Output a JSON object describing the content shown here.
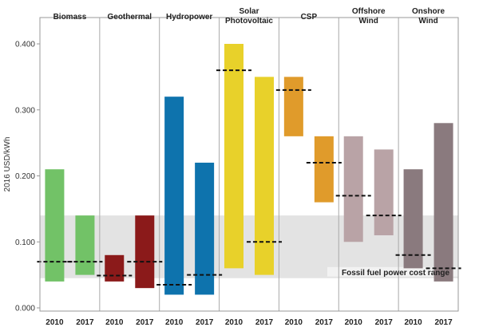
{
  "chart_data": {
    "type": "bar",
    "ylabel": "2016 USD/kWh",
    "ylim": [
      0,
      0.42
    ],
    "yticks": [
      "0.000",
      "0.100",
      "0.200",
      "0.300",
      "0.400"
    ],
    "ytick_values": [
      0,
      0.1,
      0.2,
      0.3,
      0.4
    ],
    "years": [
      "2010",
      "2017"
    ],
    "band": {
      "label": "Fossil fuel power cost range",
      "low": 0.045,
      "high": 0.14,
      "color": "#e3e3e3"
    },
    "technologies": [
      {
        "name_lines": [
          "Biomass"
        ],
        "color": "#72c267",
        "bars": [
          {
            "year": "2010",
            "low": 0.04,
            "high": 0.21,
            "avg": 0.07
          },
          {
            "year": "2017",
            "low": 0.05,
            "high": 0.14,
            "avg": 0.07
          }
        ]
      },
      {
        "name_lines": [
          "Geothermal"
        ],
        "color": "#8b1a1a",
        "bars": [
          {
            "year": "2010",
            "low": 0.04,
            "high": 0.08,
            "avg": 0.049
          },
          {
            "year": "2017",
            "low": 0.03,
            "high": 0.14,
            "avg": 0.07
          }
        ]
      },
      {
        "name_lines": [
          "Hydropower"
        ],
        "color": "#0e73ad",
        "bars": [
          {
            "year": "2010",
            "low": 0.02,
            "high": 0.32,
            "avg": 0.035
          },
          {
            "year": "2017",
            "low": 0.02,
            "high": 0.22,
            "avg": 0.05
          }
        ]
      },
      {
        "name_lines": [
          "Solar",
          "Photovoltaic"
        ],
        "color": "#e8d12a",
        "bars": [
          {
            "year": "2010",
            "low": 0.06,
            "high": 0.4,
            "avg": 0.36
          },
          {
            "year": "2017",
            "low": 0.05,
            "high": 0.35,
            "avg": 0.1
          }
        ]
      },
      {
        "name_lines": [
          "CSP"
        ],
        "color": "#e09b2b",
        "bars": [
          {
            "year": "2010",
            "low": 0.26,
            "high": 0.35,
            "avg": 0.33
          },
          {
            "year": "2017",
            "low": 0.16,
            "high": 0.26,
            "avg": 0.22
          }
        ]
      },
      {
        "name_lines": [
          "Offshore",
          "Wind"
        ],
        "color": "#b9a3a6",
        "bars": [
          {
            "year": "2010",
            "low": 0.1,
            "high": 0.26,
            "avg": 0.17
          },
          {
            "year": "2017",
            "low": 0.11,
            "high": 0.24,
            "avg": 0.14
          }
        ]
      },
      {
        "name_lines": [
          "Onshore",
          "Wind"
        ],
        "color": "#8a7a7e",
        "bars": [
          {
            "year": "2010",
            "low": 0.06,
            "high": 0.21,
            "avg": 0.08
          },
          {
            "year": "2017",
            "low": 0.04,
            "high": 0.28,
            "avg": 0.06
          }
        ]
      }
    ]
  }
}
